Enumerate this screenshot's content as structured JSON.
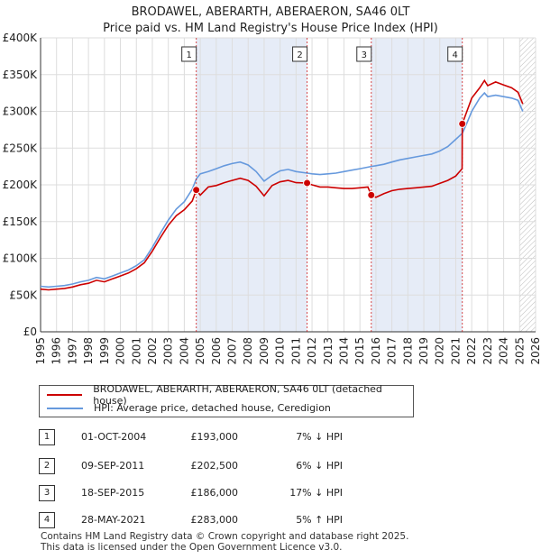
{
  "header": {
    "title": "BRODAWEL, ABERARTH, ABERAERON, SA46 0LT",
    "subtitle": "Price paid vs. HM Land Registry's House Price Index (HPI)"
  },
  "chart_data": {
    "type": "line",
    "xlim": [
      1995,
      2026
    ],
    "ylim": [
      0,
      400000
    ],
    "x_ticks": [
      1995,
      1996,
      1997,
      1998,
      1999,
      2000,
      2001,
      2002,
      2003,
      2004,
      2005,
      2006,
      2007,
      2008,
      2009,
      2010,
      2011,
      2012,
      2013,
      2014,
      2015,
      2016,
      2017,
      2018,
      2019,
      2020,
      2021,
      2022,
      2023,
      2024,
      2025,
      2026
    ],
    "x_tick_labels": [
      "1995",
      "1996",
      "1997",
      "1998",
      "1999",
      "2000",
      "2001",
      "2002",
      "2003",
      "2004",
      "2005",
      "2006",
      "2007",
      "2008",
      "2009",
      "2010",
      "2011",
      "2012",
      "2013",
      "2014",
      "2015",
      "2016",
      "2017",
      "2018",
      "2019",
      "2020",
      "2021",
      "2022",
      "2023",
      "2024",
      "2025",
      "2026"
    ],
    "y_ticks": [
      0,
      50000,
      100000,
      150000,
      200000,
      250000,
      300000,
      350000,
      400000
    ],
    "y_tick_labels": [
      "£0",
      "£50K",
      "£100K",
      "£150K",
      "£200K",
      "£250K",
      "£300K",
      "£350K",
      "£400K"
    ],
    "grid": true,
    "shaded_periods": [
      {
        "from": 2004.75,
        "to": 2011.69
      },
      {
        "from": 2015.71,
        "to": 2021.41
      }
    ],
    "hatched_from": 2025.0,
    "series": [
      {
        "name": "BRODAWEL, ABERARTH, ABERAERON, SA46 0LT (detached house)",
        "color": "#cc0000",
        "points": [
          [
            1995.0,
            58000
          ],
          [
            1995.5,
            57000
          ],
          [
            1996.0,
            58000
          ],
          [
            1996.5,
            59000
          ],
          [
            1997.0,
            61000
          ],
          [
            1997.5,
            64000
          ],
          [
            1998.0,
            66000
          ],
          [
            1998.5,
            70000
          ],
          [
            1999.0,
            68000
          ],
          [
            1999.5,
            72000
          ],
          [
            2000.0,
            76000
          ],
          [
            2000.5,
            80000
          ],
          [
            2001.0,
            86000
          ],
          [
            2001.5,
            94000
          ],
          [
            2002.0,
            110000
          ],
          [
            2002.5,
            128000
          ],
          [
            2003.0,
            145000
          ],
          [
            2003.5,
            158000
          ],
          [
            2004.0,
            166000
          ],
          [
            2004.5,
            178000
          ],
          [
            2004.75,
            193000
          ],
          [
            2005.0,
            186000
          ],
          [
            2005.5,
            197000
          ],
          [
            2006.0,
            199000
          ],
          [
            2006.5,
            203000
          ],
          [
            2007.0,
            206000
          ],
          [
            2007.5,
            209000
          ],
          [
            2008.0,
            206000
          ],
          [
            2008.5,
            198000
          ],
          [
            2009.0,
            185000
          ],
          [
            2009.5,
            199000
          ],
          [
            2010.0,
            204000
          ],
          [
            2010.5,
            206000
          ],
          [
            2011.0,
            203000
          ],
          [
            2011.69,
            202500
          ],
          [
            2012.0,
            200000
          ],
          [
            2012.5,
            197000
          ],
          [
            2013.0,
            197000
          ],
          [
            2013.5,
            196000
          ],
          [
            2014.0,
            195000
          ],
          [
            2014.5,
            195000
          ],
          [
            2015.0,
            196000
          ],
          [
            2015.5,
            197000
          ],
          [
            2015.71,
            186000
          ],
          [
            2016.0,
            183000
          ],
          [
            2016.5,
            188000
          ],
          [
            2017.0,
            192000
          ],
          [
            2017.5,
            194000
          ],
          [
            2018.0,
            195000
          ],
          [
            2018.5,
            196000
          ],
          [
            2019.0,
            197000
          ],
          [
            2019.5,
            198000
          ],
          [
            2020.0,
            202000
          ],
          [
            2020.5,
            206000
          ],
          [
            2021.0,
            212000
          ],
          [
            2021.4,
            222000
          ],
          [
            2021.41,
            283000
          ],
          [
            2021.7,
            300000
          ],
          [
            2022.0,
            318000
          ],
          [
            2022.5,
            332000
          ],
          [
            2022.8,
            342000
          ],
          [
            2023.0,
            335000
          ],
          [
            2023.5,
            340000
          ],
          [
            2024.0,
            336000
          ],
          [
            2024.5,
            332000
          ],
          [
            2024.9,
            326000
          ],
          [
            2025.2,
            310000
          ]
        ]
      },
      {
        "name": "HPI: Average price, detached house, Ceredigion",
        "color": "#6699dd",
        "points": [
          [
            1995.0,
            62000
          ],
          [
            1995.5,
            61000
          ],
          [
            1996.0,
            62000
          ],
          [
            1996.5,
            63000
          ],
          [
            1997.0,
            65000
          ],
          [
            1997.5,
            68000
          ],
          [
            1998.0,
            70000
          ],
          [
            1998.5,
            74000
          ],
          [
            1999.0,
            72000
          ],
          [
            1999.5,
            76000
          ],
          [
            2000.0,
            80000
          ],
          [
            2000.5,
            84000
          ],
          [
            2001.0,
            90000
          ],
          [
            2001.5,
            98000
          ],
          [
            2002.0,
            115000
          ],
          [
            2002.5,
            134000
          ],
          [
            2003.0,
            152000
          ],
          [
            2003.5,
            167000
          ],
          [
            2004.0,
            177000
          ],
          [
            2004.5,
            194000
          ],
          [
            2004.75,
            208000
          ],
          [
            2005.0,
            215000
          ],
          [
            2005.5,
            218000
          ],
          [
            2006.0,
            222000
          ],
          [
            2006.5,
            226000
          ],
          [
            2007.0,
            229000
          ],
          [
            2007.5,
            231000
          ],
          [
            2008.0,
            227000
          ],
          [
            2008.5,
            218000
          ],
          [
            2009.0,
            205000
          ],
          [
            2009.5,
            213000
          ],
          [
            2010.0,
            219000
          ],
          [
            2010.5,
            221000
          ],
          [
            2011.0,
            218000
          ],
          [
            2011.69,
            216000
          ],
          [
            2012.0,
            215000
          ],
          [
            2012.5,
            214000
          ],
          [
            2013.0,
            215000
          ],
          [
            2013.5,
            216000
          ],
          [
            2014.0,
            218000
          ],
          [
            2014.5,
            220000
          ],
          [
            2015.0,
            222000
          ],
          [
            2015.5,
            224000
          ],
          [
            2015.71,
            225000
          ],
          [
            2016.0,
            226000
          ],
          [
            2016.5,
            228000
          ],
          [
            2017.0,
            231000
          ],
          [
            2017.5,
            234000
          ],
          [
            2018.0,
            236000
          ],
          [
            2018.5,
            238000
          ],
          [
            2019.0,
            240000
          ],
          [
            2019.5,
            242000
          ],
          [
            2020.0,
            246000
          ],
          [
            2020.5,
            252000
          ],
          [
            2021.0,
            262000
          ],
          [
            2021.41,
            270000
          ],
          [
            2021.7,
            284000
          ],
          [
            2022.0,
            300000
          ],
          [
            2022.5,
            318000
          ],
          [
            2022.8,
            325000
          ],
          [
            2023.0,
            320000
          ],
          [
            2023.5,
            322000
          ],
          [
            2024.0,
            320000
          ],
          [
            2024.5,
            318000
          ],
          [
            2024.9,
            315000
          ],
          [
            2025.2,
            300000
          ]
        ]
      }
    ],
    "markers": [
      {
        "label": "1",
        "x": 2004.75,
        "y": 193000
      },
      {
        "label": "2",
        "x": 2011.69,
        "y": 202500
      },
      {
        "label": "3",
        "x": 2015.71,
        "y": 186000
      },
      {
        "label": "4",
        "x": 2021.41,
        "y": 283000
      }
    ]
  },
  "legend": {
    "items": [
      {
        "label": "BRODAWEL, ABERARTH, ABERAERON, SA46 0LT (detached house)",
        "color": "#cc0000"
      },
      {
        "label": "HPI: Average price, detached house, Ceredigion",
        "color": "#6699dd"
      }
    ]
  },
  "transactions": [
    {
      "num": "1",
      "date": "01-OCT-2004",
      "price": "£193,000",
      "hpi": "7% ↓ HPI"
    },
    {
      "num": "2",
      "date": "09-SEP-2011",
      "price": "£202,500",
      "hpi": "6% ↓ HPI"
    },
    {
      "num": "3",
      "date": "18-SEP-2015",
      "price": "£186,000",
      "hpi": "17% ↓ HPI"
    },
    {
      "num": "4",
      "date": "28-MAY-2021",
      "price": "£283,000",
      "hpi": "5% ↑ HPI"
    }
  ],
  "footer": {
    "line1": "Contains HM Land Registry data © Crown copyright and database right 2025.",
    "line2": "This data is licensed under the Open Government Licence v3.0."
  }
}
